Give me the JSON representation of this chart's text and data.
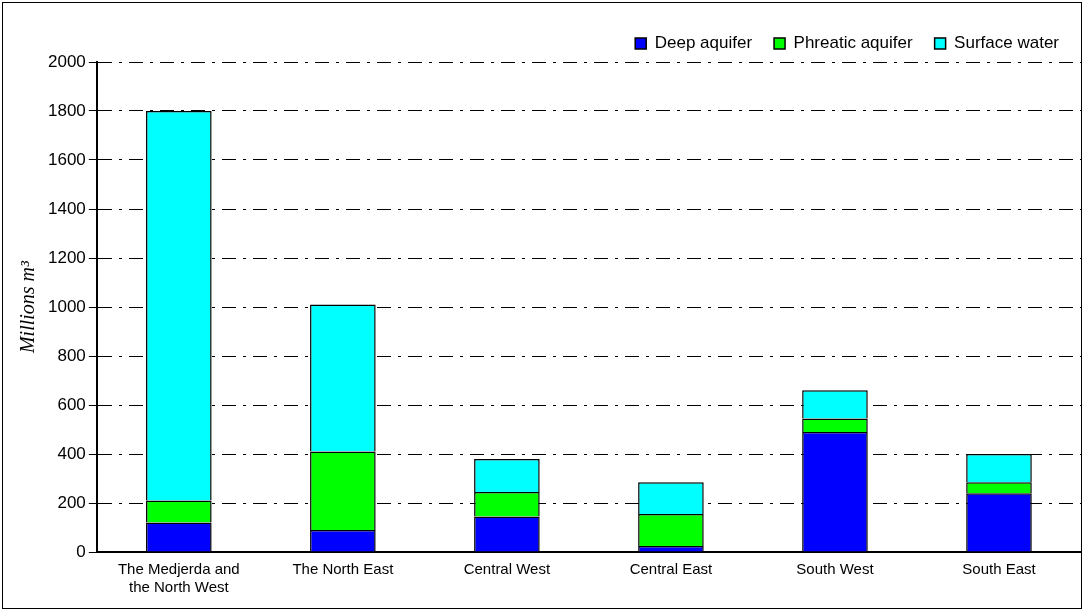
{
  "chart_data": {
    "type": "bar",
    "stacked": true,
    "ylabel": "Millions m³",
    "categories": [
      "The Medjerda and the North West",
      "The North East",
      "Central West",
      "Central East",
      "South West",
      "South East"
    ],
    "series": [
      {
        "name": "Deep aquifer",
        "color": "#0000ff",
        "values": [
          120,
          90,
          145,
          25,
          490,
          240
        ]
      },
      {
        "name": "Phreatic aquifer",
        "color": "#00ff00",
        "values": [
          90,
          320,
          100,
          130,
          55,
          45
        ]
      },
      {
        "name": "Surface water",
        "color": "#00ffff",
        "values": [
          1590,
          600,
          135,
          130,
          115,
          115
        ]
      }
    ],
    "ylim": [
      0,
      2000
    ],
    "yticks": [
      0,
      200,
      400,
      600,
      800,
      1000,
      1200,
      1400,
      1600,
      1800,
      2000
    ],
    "grid": "y",
    "legend": "top right",
    "line_style": "dashed"
  }
}
